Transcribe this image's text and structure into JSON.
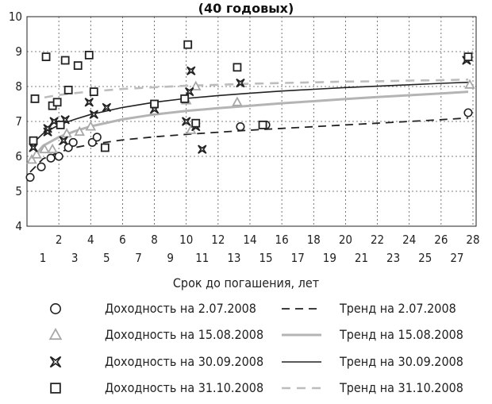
{
  "chart_data": {
    "type": "scatter",
    "title": "(40 годовых)",
    "xlabel": "Срок до погашения, лет",
    "ylabel": "",
    "xlim": [
      0,
      28.2
    ],
    "ylim": [
      4,
      10
    ],
    "xticks_upper": [
      2,
      4,
      6,
      8,
      10,
      12,
      14,
      16,
      18,
      20,
      22,
      24,
      26,
      28
    ],
    "xticks_lower": [
      1,
      3,
      5,
      7,
      9,
      11,
      13,
      15,
      17,
      19,
      21,
      23,
      25,
      27
    ],
    "yticks": [
      4,
      5,
      6,
      7,
      8,
      9,
      10
    ],
    "grid": "dashed",
    "legend_position": "bottom",
    "series": [
      {
        "name": "Доходность на 2.07.2008",
        "marker": "circle",
        "color": "#222222",
        "points": [
          [
            0.2,
            5.4
          ],
          [
            0.9,
            5.7
          ],
          [
            1.5,
            5.95
          ],
          [
            2.0,
            6.0
          ],
          [
            2.6,
            6.25
          ],
          [
            2.9,
            6.4
          ],
          [
            4.1,
            6.4
          ],
          [
            4.4,
            6.55
          ],
          [
            13.4,
            6.85
          ],
          [
            15.0,
            6.9
          ],
          [
            27.7,
            7.25
          ]
        ]
      },
      {
        "name": "Доходность на 15.08.2008",
        "marker": "triangle",
        "color": "#a8a8a8",
        "points": [
          [
            0.3,
            5.9
          ],
          [
            0.6,
            6.05
          ],
          [
            1.1,
            6.2
          ],
          [
            1.6,
            6.2
          ],
          [
            2.5,
            6.65
          ],
          [
            3.3,
            6.7
          ],
          [
            4.0,
            6.85
          ],
          [
            8.0,
            7.3
          ],
          [
            10.0,
            7.6
          ],
          [
            10.3,
            6.75
          ],
          [
            10.6,
            8.0
          ],
          [
            13.2,
            7.55
          ],
          [
            27.8,
            8.05
          ]
        ]
      },
      {
        "name": "Доходность на 30.09.2008",
        "marker": "star4",
        "color": "#222222",
        "points": [
          [
            0.4,
            6.25
          ],
          [
            1.3,
            6.7
          ],
          [
            1.7,
            7.0
          ],
          [
            2.4,
            7.05
          ],
          [
            1.3,
            6.8
          ],
          [
            2.3,
            6.45
          ],
          [
            3.9,
            7.55
          ],
          [
            4.2,
            7.2
          ],
          [
            5.0,
            7.4
          ],
          [
            8.0,
            7.35
          ],
          [
            10.0,
            7.0
          ],
          [
            10.2,
            7.85
          ],
          [
            10.3,
            8.45
          ],
          [
            10.6,
            6.85
          ],
          [
            11.0,
            6.2
          ],
          [
            13.4,
            8.1
          ],
          [
            27.6,
            8.75
          ]
        ]
      },
      {
        "name": "Доходность на 31.10.2008",
        "marker": "square",
        "color": "#222222",
        "points": [
          [
            0.4,
            6.45
          ],
          [
            0.5,
            7.65
          ],
          [
            1.2,
            8.85
          ],
          [
            1.6,
            7.45
          ],
          [
            1.9,
            7.55
          ],
          [
            2.1,
            6.9
          ],
          [
            2.4,
            8.75
          ],
          [
            2.6,
            7.9
          ],
          [
            3.2,
            8.6
          ],
          [
            3.9,
            8.9
          ],
          [
            4.2,
            7.85
          ],
          [
            4.9,
            6.25
          ],
          [
            8.0,
            7.5
          ],
          [
            9.9,
            7.65
          ],
          [
            10.1,
            9.2
          ],
          [
            10.6,
            6.95
          ],
          [
            13.2,
            8.55
          ],
          [
            14.8,
            6.9
          ],
          [
            27.7,
            8.85
          ]
        ]
      }
    ],
    "trends": [
      {
        "name": "Тренд на 2.07.2008",
        "style": "dashed",
        "color": "#222222",
        "points": [
          [
            0.2,
            5.55
          ],
          [
            1,
            5.93
          ],
          [
            2,
            6.12
          ],
          [
            3,
            6.25
          ],
          [
            4,
            6.34
          ],
          [
            6,
            6.47
          ],
          [
            8,
            6.56
          ],
          [
            10,
            6.63
          ],
          [
            12,
            6.69
          ],
          [
            14,
            6.75
          ],
          [
            16,
            6.8
          ],
          [
            18,
            6.85
          ],
          [
            20,
            6.9
          ],
          [
            22,
            6.95
          ],
          [
            24,
            7.0
          ],
          [
            26,
            7.05
          ],
          [
            27.7,
            7.1
          ]
        ]
      },
      {
        "name": "Тренд на 15.08.2008",
        "style": "solid-thick",
        "color": "#b4b4b4",
        "points": [
          [
            0.2,
            5.85
          ],
          [
            1,
            6.3
          ],
          [
            2,
            6.55
          ],
          [
            3,
            6.72
          ],
          [
            4,
            6.86
          ],
          [
            6,
            7.06
          ],
          [
            8,
            7.2
          ],
          [
            10,
            7.3
          ],
          [
            12,
            7.38
          ],
          [
            14,
            7.45
          ],
          [
            16,
            7.52
          ],
          [
            18,
            7.58
          ],
          [
            20,
            7.64
          ],
          [
            22,
            7.7
          ],
          [
            24,
            7.75
          ],
          [
            26,
            7.8
          ],
          [
            27.7,
            7.85
          ]
        ]
      },
      {
        "name": "Тренд на 30.09.2008",
        "style": "solid",
        "color": "#222222",
        "points": [
          [
            0.2,
            6.3
          ],
          [
            1,
            6.65
          ],
          [
            2,
            6.9
          ],
          [
            3,
            7.06
          ],
          [
            4,
            7.2
          ],
          [
            6,
            7.4
          ],
          [
            8,
            7.55
          ],
          [
            10,
            7.66
          ],
          [
            12,
            7.74
          ],
          [
            14,
            7.81
          ],
          [
            16,
            7.87
          ],
          [
            18,
            7.92
          ],
          [
            20,
            7.97
          ],
          [
            22,
            8.01
          ],
          [
            24,
            8.05
          ],
          [
            26,
            8.09
          ],
          [
            27.7,
            8.12
          ]
        ]
      },
      {
        "name": "Тренд на 31.10.2008",
        "style": "dashed-light",
        "color": "#bdbdbd",
        "points": [
          [
            0.2,
            7.55
          ],
          [
            1,
            7.68
          ],
          [
            2,
            7.76
          ],
          [
            4,
            7.86
          ],
          [
            6,
            7.93
          ],
          [
            8,
            7.98
          ],
          [
            10,
            8.02
          ],
          [
            12,
            8.05
          ],
          [
            14,
            8.08
          ],
          [
            16,
            8.1
          ],
          [
            18,
            8.12
          ],
          [
            20,
            8.14
          ],
          [
            22,
            8.15
          ],
          [
            24,
            8.17
          ],
          [
            26,
            8.18
          ],
          [
            27.7,
            8.2
          ]
        ]
      }
    ]
  }
}
